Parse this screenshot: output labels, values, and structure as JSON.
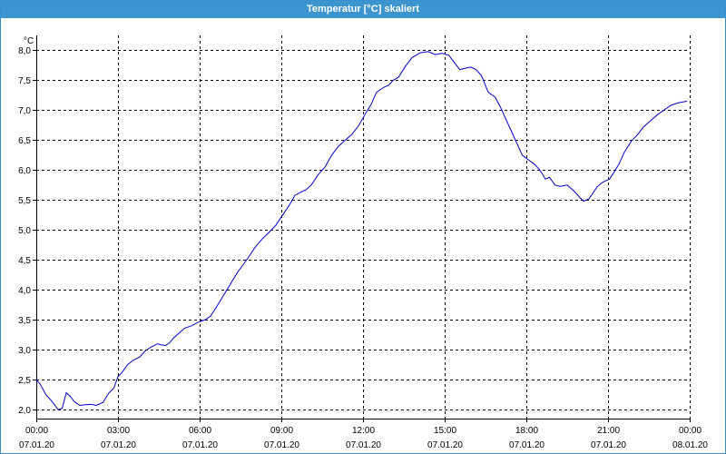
{
  "window": {
    "title": "Temperatur [°C] skaliert"
  },
  "colors": {
    "titlebar": "#3d95cf",
    "line": "#0000cc",
    "grid": "#000000",
    "axis": "#000000"
  },
  "chart_data": {
    "type": "line",
    "title": "Temperatur [°C] skaliert",
    "ylabel": "°C",
    "xlabel": "",
    "grid": true,
    "grid_style": "dashed",
    "ylim": [
      1.85,
      8.25
    ],
    "xlim": [
      0,
      24
    ],
    "y_ticks": [
      {
        "value": 2.0,
        "label": "2,0"
      },
      {
        "value": 2.5,
        "label": "2,5"
      },
      {
        "value": 3.0,
        "label": "3,0"
      },
      {
        "value": 3.5,
        "label": "3,5"
      },
      {
        "value": 4.0,
        "label": "4,0"
      },
      {
        "value": 4.5,
        "label": "4,5"
      },
      {
        "value": 5.0,
        "label": "5,0"
      },
      {
        "value": 5.5,
        "label": "5,5"
      },
      {
        "value": 6.0,
        "label": "6,0"
      },
      {
        "value": 6.5,
        "label": "6,5"
      },
      {
        "value": 7.0,
        "label": "7,0"
      },
      {
        "value": 7.5,
        "label": "7,5"
      },
      {
        "value": 8.0,
        "label": "8,0"
      }
    ],
    "x_ticks": [
      {
        "value": 0,
        "time": "00:00",
        "date": "07.01.20"
      },
      {
        "value": 3,
        "time": "03:00",
        "date": "07.01.20"
      },
      {
        "value": 6,
        "time": "06:00",
        "date": "07.01.20"
      },
      {
        "value": 9,
        "time": "09:00",
        "date": "07.01.20"
      },
      {
        "value": 12,
        "time": "12:00",
        "date": "07.01.20"
      },
      {
        "value": 15,
        "time": "15:00",
        "date": "07.01.20"
      },
      {
        "value": 18,
        "time": "18:00",
        "date": "07.01.20"
      },
      {
        "value": 21,
        "time": "21:00",
        "date": "07.01.20"
      },
      {
        "value": 24,
        "time": "00:00",
        "date": "08.01.20"
      }
    ],
    "series": [
      {
        "x": [
          0,
          0.15,
          0.35,
          0.55,
          0.8,
          0.95,
          1.1,
          1.25,
          1.4,
          1.6,
          1.8,
          2.0,
          2.2,
          2.45,
          2.65,
          2.85,
          3.0,
          3.15,
          3.35,
          3.55,
          3.8,
          4.0,
          4.2,
          4.45,
          4.6,
          4.75,
          4.9,
          5.05,
          5.25,
          5.45,
          5.7,
          5.95,
          6.2,
          6.4,
          6.6,
          6.8,
          7.0,
          7.2,
          7.4,
          7.6,
          7.8,
          8.05,
          8.3,
          8.55,
          8.8,
          9.05,
          9.3,
          9.5,
          9.7,
          9.9,
          10.1,
          10.35,
          10.6,
          10.85,
          11.1,
          11.35,
          11.6,
          11.85,
          12.1,
          12.3,
          12.5,
          12.75,
          12.95,
          13.1,
          13.3,
          13.55,
          13.8,
          14.1,
          14.4,
          14.65,
          14.9,
          15.15,
          15.35,
          15.55,
          15.75,
          15.95,
          16.15,
          16.35,
          16.6,
          16.85,
          17.05,
          17.25,
          17.45,
          17.65,
          17.85,
          18.05,
          18.3,
          18.5,
          18.7,
          18.85,
          19.05,
          19.25,
          19.5,
          19.75,
          19.95,
          20.1,
          20.3,
          20.45,
          20.6,
          20.75,
          20.9,
          21.05,
          21.2,
          21.4,
          21.6,
          21.85,
          22.1,
          22.3,
          22.55,
          22.8,
          23.05,
          23.3,
          23.55,
          23.75,
          23.9
        ],
        "y": [
          2.5,
          2.42,
          2.25,
          2.15,
          2.0,
          2.02,
          2.28,
          2.22,
          2.13,
          2.07,
          2.08,
          2.09,
          2.07,
          2.12,
          2.27,
          2.36,
          2.55,
          2.62,
          2.75,
          2.82,
          2.88,
          2.98,
          3.04,
          3.1,
          3.08,
          3.07,
          3.12,
          3.2,
          3.28,
          3.36,
          3.4,
          3.46,
          3.5,
          3.56,
          3.7,
          3.85,
          4.0,
          4.15,
          4.3,
          4.42,
          4.55,
          4.72,
          4.85,
          4.96,
          5.08,
          5.25,
          5.42,
          5.58,
          5.63,
          5.67,
          5.75,
          5.92,
          6.05,
          6.25,
          6.4,
          6.5,
          6.6,
          6.75,
          6.95,
          7.1,
          7.3,
          7.38,
          7.42,
          7.5,
          7.55,
          7.73,
          7.88,
          7.96,
          7.98,
          7.93,
          7.95,
          7.92,
          7.8,
          7.68,
          7.7,
          7.72,
          7.68,
          7.58,
          7.3,
          7.22,
          7.05,
          6.85,
          6.65,
          6.45,
          6.25,
          6.18,
          6.1,
          6.0,
          5.85,
          5.88,
          5.75,
          5.73,
          5.75,
          5.65,
          5.55,
          5.48,
          5.52,
          5.62,
          5.72,
          5.78,
          5.82,
          5.85,
          5.95,
          6.1,
          6.3,
          6.48,
          6.6,
          6.72,
          6.82,
          6.92,
          7.0,
          7.08,
          7.12,
          7.14,
          7.15
        ]
      }
    ]
  }
}
